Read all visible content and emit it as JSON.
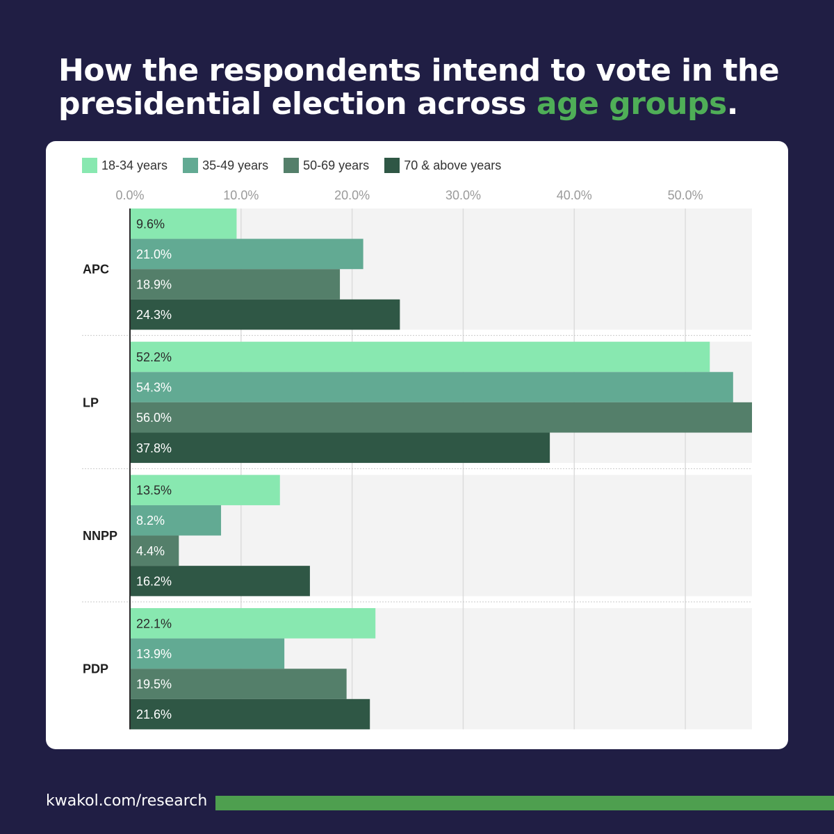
{
  "header": {
    "title_part1": "How the respondents intend to vote in the presidential election across ",
    "title_highlight": "age groups",
    "title_end": "."
  },
  "footer": {
    "link": "kwakol.com/research"
  },
  "colors": {
    "background": "#201e44",
    "accent_green": "#4fae57",
    "footer_bar": "#4e9f4f",
    "series": [
      "#88e8b0",
      "#62aa93",
      "#547f6a",
      "#2f5745"
    ]
  },
  "chart_data": {
    "type": "bar",
    "orientation": "horizontal",
    "title": "How the respondents intend to vote in the presidential election across age groups.",
    "categories": [
      "APC",
      "LP",
      "NNPP",
      "PDP"
    ],
    "series": [
      {
        "name": "18-34 years",
        "values": [
          9.6,
          52.2,
          13.5,
          22.1
        ]
      },
      {
        "name": "35-49 years",
        "values": [
          21.0,
          54.3,
          8.2,
          13.9
        ]
      },
      {
        "name": "50-69 years",
        "values": [
          18.9,
          56.0,
          4.4,
          19.5
        ]
      },
      {
        "name": "70 & above years",
        "values": [
          24.3,
          37.8,
          16.2,
          21.6
        ]
      }
    ],
    "data_labels": [
      [
        "9.6%",
        "52.2%",
        "13.5%",
        "22.1%"
      ],
      [
        "21.0%",
        "54.3%",
        "8.2%",
        "13.9%"
      ],
      [
        "18.9%",
        "56.0%",
        "4.4%",
        "19.5%"
      ],
      [
        "24.3%",
        "37.8%",
        "16.2%",
        "21.6%"
      ]
    ],
    "x_ticks": [
      0,
      10,
      20,
      30,
      40,
      50
    ],
    "x_tick_labels": [
      "0.0%",
      "10.0%",
      "20.0%",
      "30.0%",
      "40.0%",
      "50.0%"
    ],
    "xlim": [
      0,
      56
    ],
    "grid": true,
    "legend_position": "top-left"
  }
}
